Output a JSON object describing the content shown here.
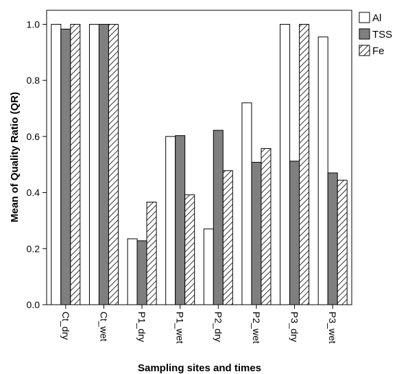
{
  "chart_data": {
    "type": "bar",
    "xlabel": "Sampling sites and times",
    "ylabel": "Mean of Quality Ratio (QR)",
    "ylim": [
      0,
      1.05
    ],
    "yticks": [
      "0.0",
      "0.2",
      "0.4",
      "0.6",
      "0.8",
      "1.0"
    ],
    "grid": false,
    "legend_position": "right",
    "categories": [
      "Ct_dry",
      "Ct_wet",
      "P1_dry",
      "P1_wet",
      "P2_dry",
      "P2_wet",
      "P3_dry",
      "P3_wet"
    ],
    "series": [
      {
        "name": "Al",
        "fill": "white",
        "values": [
          1.0,
          1.0,
          0.235,
          0.6,
          0.27,
          0.72,
          1.0,
          0.955
        ]
      },
      {
        "name": "TSS",
        "fill": "gray",
        "values": [
          0.983,
          1.0,
          0.228,
          0.603,
          0.622,
          0.508,
          0.512,
          0.47
        ]
      },
      {
        "name": "Fe",
        "fill": "hatched",
        "values": [
          1.0,
          1.0,
          0.366,
          0.392,
          0.478,
          0.557,
          1.0,
          0.444
        ]
      }
    ],
    "colors": {
      "tss": "#7f7f7f",
      "outline": "#000000",
      "background": "#ffffff"
    }
  }
}
